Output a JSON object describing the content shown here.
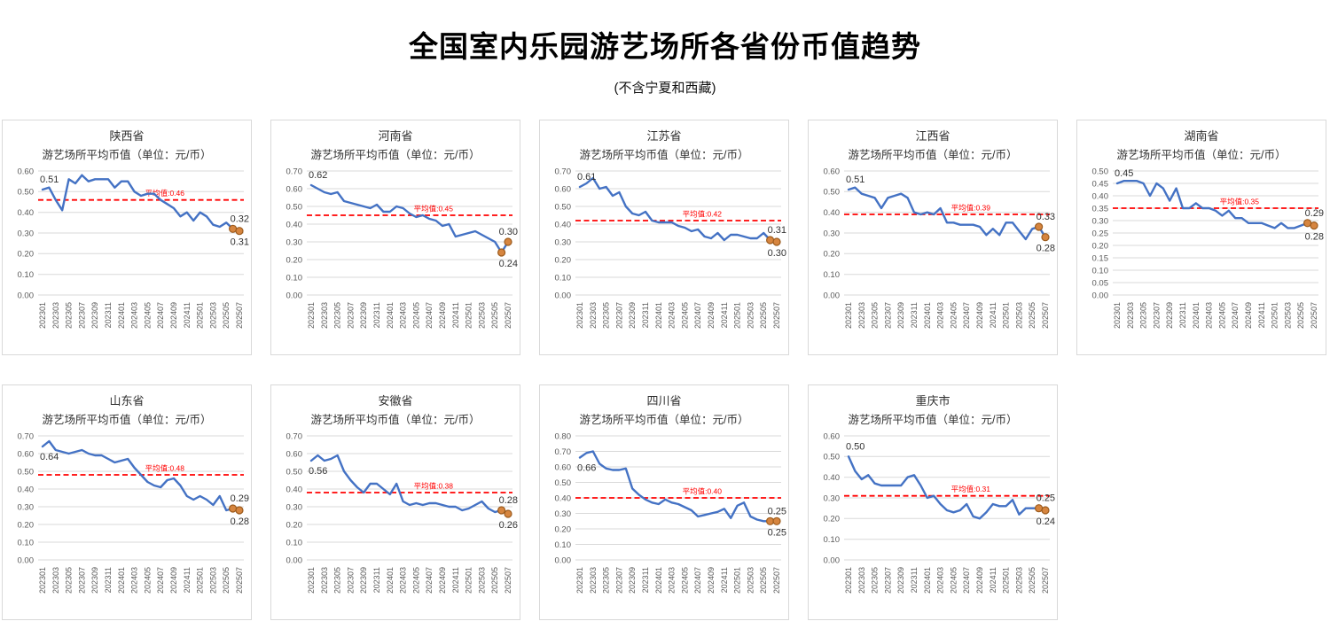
{
  "header": {
    "title": "全国室内乐园游艺场所各省份币值趋势",
    "subtitle": "(不含宁夏和西藏)"
  },
  "colors": {
    "line": "#4472C4",
    "average_line": "#FF0000",
    "marker_fill": "#D6853F",
    "marker_border": "#9C5B1D",
    "grid": "#D9D9D9",
    "axis_text": "#595959",
    "label_text": "#333333"
  },
  "chart_data": [
    {
      "type": "line",
      "title": "陕西省",
      "subtitle": "游艺场所平均币值（单位：元/币）",
      "categories": [
        "202301",
        "202302",
        "202303",
        "202304",
        "202305",
        "202306",
        "202307",
        "202308",
        "202309",
        "202310",
        "202311",
        "202312",
        "202401",
        "202402",
        "202403",
        "202404",
        "202405",
        "202406",
        "202407",
        "202408",
        "202409",
        "202410",
        "202411",
        "202412",
        "202501",
        "202502",
        "202503",
        "202504",
        "202505",
        "202506",
        "202507"
      ],
      "values": [
        0.51,
        0.52,
        0.46,
        0.41,
        0.56,
        0.54,
        0.58,
        0.55,
        0.56,
        0.56,
        0.56,
        0.52,
        0.55,
        0.55,
        0.5,
        0.48,
        0.49,
        0.49,
        0.46,
        0.44,
        0.42,
        0.38,
        0.4,
        0.36,
        0.4,
        0.38,
        0.34,
        0.33,
        0.35,
        0.32,
        0.31
      ],
      "ylim": [
        0,
        0.6
      ],
      "y_ticks": [
        "0.00",
        "0.10",
        "0.20",
        "0.30",
        "0.40",
        "0.50",
        "0.60"
      ],
      "average": 0.46,
      "average_label": "平均值:0.46",
      "first_label": "0.51",
      "first_label_pos": "above",
      "end_labels": [
        {
          "text": "0.32",
          "pos": "above"
        },
        {
          "text": "0.31",
          "pos": "below"
        }
      ]
    },
    {
      "type": "line",
      "title": "河南省",
      "subtitle": "游艺场所平均币值（单位：元/币）",
      "categories": [
        "202301",
        "202302",
        "202303",
        "202304",
        "202305",
        "202306",
        "202307",
        "202308",
        "202309",
        "202310",
        "202311",
        "202312",
        "202401",
        "202402",
        "202403",
        "202404",
        "202405",
        "202406",
        "202407",
        "202408",
        "202409",
        "202410",
        "202411",
        "202412",
        "202501",
        "202502",
        "202503",
        "202504",
        "202505",
        "202506",
        "202507"
      ],
      "values": [
        0.62,
        0.6,
        0.58,
        0.57,
        0.58,
        0.53,
        0.52,
        0.51,
        0.5,
        0.49,
        0.51,
        0.47,
        0.47,
        0.5,
        0.49,
        0.46,
        0.44,
        0.45,
        0.43,
        0.42,
        0.39,
        0.4,
        0.33,
        0.34,
        0.35,
        0.36,
        0.34,
        0.32,
        0.3,
        0.24,
        0.3
      ],
      "ylim": [
        0,
        0.7
      ],
      "y_ticks": [
        "0.00",
        "0.10",
        "0.20",
        "0.30",
        "0.40",
        "0.50",
        "0.60",
        "0.70"
      ],
      "average": 0.45,
      "average_label": "平均值:0.45",
      "first_label": "0.62",
      "first_label_pos": "above",
      "end_labels": [
        {
          "text": "0.24",
          "pos": "below"
        },
        {
          "text": "0.30",
          "pos": "above"
        }
      ]
    },
    {
      "type": "line",
      "title": "江苏省",
      "subtitle": "游艺场所平均币值（单位：元/币）",
      "categories": [
        "202301",
        "202302",
        "202303",
        "202304",
        "202305",
        "202306",
        "202307",
        "202308",
        "202309",
        "202310",
        "202311",
        "202312",
        "202401",
        "202402",
        "202403",
        "202404",
        "202405",
        "202406",
        "202407",
        "202408",
        "202409",
        "202410",
        "202411",
        "202412",
        "202501",
        "202502",
        "202503",
        "202504",
        "202505",
        "202506",
        "202507"
      ],
      "values": [
        0.61,
        0.63,
        0.66,
        0.6,
        0.61,
        0.56,
        0.58,
        0.5,
        0.46,
        0.45,
        0.47,
        0.42,
        0.41,
        0.41,
        0.41,
        0.39,
        0.38,
        0.36,
        0.37,
        0.33,
        0.32,
        0.35,
        0.31,
        0.34,
        0.34,
        0.33,
        0.32,
        0.32,
        0.35,
        0.31,
        0.3
      ],
      "ylim": [
        0,
        0.7
      ],
      "y_ticks": [
        "0.00",
        "0.10",
        "0.20",
        "0.30",
        "0.40",
        "0.50",
        "0.60",
        "0.70"
      ],
      "average": 0.42,
      "average_label": "平均值:0.42",
      "first_label": "0.61",
      "first_label_pos": "above",
      "end_labels": [
        {
          "text": "0.31",
          "pos": "above"
        },
        {
          "text": "0.30",
          "pos": "below"
        }
      ]
    },
    {
      "type": "line",
      "title": "江西省",
      "subtitle": "游艺场所平均币值（单位：元/币）",
      "categories": [
        "202301",
        "202302",
        "202303",
        "202304",
        "202305",
        "202306",
        "202307",
        "202308",
        "202309",
        "202310",
        "202311",
        "202312",
        "202401",
        "202402",
        "202403",
        "202404",
        "202405",
        "202406",
        "202407",
        "202408",
        "202409",
        "202410",
        "202411",
        "202412",
        "202501",
        "202502",
        "202503",
        "202504",
        "202505",
        "202506",
        "202507"
      ],
      "values": [
        0.51,
        0.52,
        0.49,
        0.48,
        0.47,
        0.42,
        0.47,
        0.48,
        0.49,
        0.47,
        0.4,
        0.39,
        0.4,
        0.39,
        0.42,
        0.35,
        0.35,
        0.34,
        0.34,
        0.34,
        0.33,
        0.29,
        0.32,
        0.29,
        0.35,
        0.35,
        0.31,
        0.27,
        0.32,
        0.33,
        0.28
      ],
      "ylim": [
        0,
        0.6
      ],
      "y_ticks": [
        "0.00",
        "0.10",
        "0.20",
        "0.30",
        "0.40",
        "0.50",
        "0.60"
      ],
      "average": 0.39,
      "average_label": "平均值:0.39",
      "first_label": "0.51",
      "first_label_pos": "above",
      "end_labels": [
        {
          "text": "0.33",
          "pos": "above"
        },
        {
          "text": "0.28",
          "pos": "below"
        }
      ]
    },
    {
      "type": "line",
      "title": "湖南省",
      "subtitle": "游艺场所平均币值（单位：元/币）",
      "categories": [
        "202301",
        "202302",
        "202303",
        "202304",
        "202305",
        "202306",
        "202307",
        "202308",
        "202309",
        "202310",
        "202311",
        "202312",
        "202401",
        "202402",
        "202403",
        "202404",
        "202405",
        "202406",
        "202407",
        "202408",
        "202409",
        "202410",
        "202411",
        "202412",
        "202501",
        "202502",
        "202503",
        "202504",
        "202505",
        "202506",
        "202507"
      ],
      "values": [
        0.45,
        0.46,
        0.46,
        0.46,
        0.45,
        0.4,
        0.45,
        0.43,
        0.38,
        0.43,
        0.35,
        0.35,
        0.37,
        0.35,
        0.35,
        0.34,
        0.32,
        0.34,
        0.31,
        0.31,
        0.29,
        0.29,
        0.29,
        0.28,
        0.27,
        0.29,
        0.27,
        0.27,
        0.28,
        0.29,
        0.28
      ],
      "ylim": [
        0,
        0.5
      ],
      "y_ticks": [
        "0.00",
        "0.05",
        "0.10",
        "0.15",
        "0.20",
        "0.25",
        "0.30",
        "0.35",
        "0.40",
        "0.45",
        "0.50"
      ],
      "average": 0.35,
      "average_label": "平均值:0.35",
      "first_label": "0.45",
      "first_label_pos": "above",
      "end_labels": [
        {
          "text": "0.29",
          "pos": "above"
        },
        {
          "text": "0.28",
          "pos": "below"
        }
      ]
    },
    {
      "type": "line",
      "title": "山东省",
      "subtitle": "游艺场所平均币值（单位：元/币）",
      "categories": [
        "202301",
        "202302",
        "202303",
        "202304",
        "202305",
        "202306",
        "202307",
        "202308",
        "202309",
        "202310",
        "202311",
        "202312",
        "202401",
        "202402",
        "202403",
        "202404",
        "202405",
        "202406",
        "202407",
        "202408",
        "202409",
        "202410",
        "202411",
        "202412",
        "202501",
        "202502",
        "202503",
        "202504",
        "202505",
        "202506",
        "202507"
      ],
      "values": [
        0.64,
        0.67,
        0.62,
        0.61,
        0.6,
        0.61,
        0.62,
        0.6,
        0.59,
        0.59,
        0.57,
        0.55,
        0.56,
        0.57,
        0.52,
        0.48,
        0.44,
        0.42,
        0.41,
        0.45,
        0.46,
        0.42,
        0.36,
        0.34,
        0.36,
        0.34,
        0.31,
        0.36,
        0.28,
        0.29,
        0.28
      ],
      "ylim": [
        0,
        0.7
      ],
      "y_ticks": [
        "0.00",
        "0.10",
        "0.20",
        "0.30",
        "0.40",
        "0.50",
        "0.60",
        "0.70"
      ],
      "average": 0.48,
      "average_label": "平均值:0.48",
      "first_label": "0.64",
      "first_label_pos": "below",
      "end_labels": [
        {
          "text": "0.29",
          "pos": "above"
        },
        {
          "text": "0.28",
          "pos": "below"
        }
      ]
    },
    {
      "type": "line",
      "title": "安徽省",
      "subtitle": "游艺场所平均币值（单位：元/币）",
      "categories": [
        "202301",
        "202302",
        "202303",
        "202304",
        "202305",
        "202306",
        "202307",
        "202308",
        "202309",
        "202310",
        "202311",
        "202312",
        "202401",
        "202402",
        "202403",
        "202404",
        "202405",
        "202406",
        "202407",
        "202408",
        "202409",
        "202410",
        "202411",
        "202412",
        "202501",
        "202502",
        "202503",
        "202504",
        "202505",
        "202506",
        "202507"
      ],
      "values": [
        0.56,
        0.59,
        0.56,
        0.57,
        0.59,
        0.5,
        0.45,
        0.41,
        0.38,
        0.43,
        0.43,
        0.4,
        0.37,
        0.43,
        0.33,
        0.31,
        0.32,
        0.31,
        0.32,
        0.32,
        0.31,
        0.3,
        0.3,
        0.28,
        0.29,
        0.31,
        0.33,
        0.29,
        0.27,
        0.28,
        0.26
      ],
      "ylim": [
        0,
        0.7
      ],
      "y_ticks": [
        "0.00",
        "0.10",
        "0.20",
        "0.30",
        "0.40",
        "0.50",
        "0.60",
        "0.70"
      ],
      "average": 0.38,
      "average_label": "平均值:0.38",
      "first_label": "0.56",
      "first_label_pos": "below",
      "end_labels": [
        {
          "text": "0.28",
          "pos": "above"
        },
        {
          "text": "0.26",
          "pos": "below"
        }
      ]
    },
    {
      "type": "line",
      "title": "四川省",
      "subtitle": "游艺场所平均币值（单位：元/币）",
      "categories": [
        "202301",
        "202302",
        "202303",
        "202304",
        "202305",
        "202306",
        "202307",
        "202308",
        "202309",
        "202310",
        "202311",
        "202312",
        "202401",
        "202402",
        "202403",
        "202404",
        "202405",
        "202406",
        "202407",
        "202408",
        "202409",
        "202410",
        "202411",
        "202412",
        "202501",
        "202502",
        "202503",
        "202504",
        "202505",
        "202506",
        "202507"
      ],
      "values": [
        0.66,
        0.69,
        0.7,
        0.62,
        0.59,
        0.58,
        0.58,
        0.59,
        0.46,
        0.42,
        0.39,
        0.37,
        0.36,
        0.39,
        0.37,
        0.36,
        0.34,
        0.32,
        0.28,
        0.29,
        0.3,
        0.31,
        0.33,
        0.27,
        0.35,
        0.37,
        0.28,
        0.26,
        0.25,
        0.25,
        0.25
      ],
      "ylim": [
        0,
        0.8
      ],
      "y_ticks": [
        "0.00",
        "0.10",
        "0.20",
        "0.30",
        "0.40",
        "0.50",
        "0.60",
        "0.70",
        "0.80"
      ],
      "average": 0.4,
      "average_label": "平均值:0.40",
      "first_label": "0.66",
      "first_label_pos": "below",
      "end_labels": [
        {
          "text": "0.25",
          "pos": "above"
        },
        {
          "text": "0.25",
          "pos": "below"
        }
      ]
    },
    {
      "type": "line",
      "title": "重庆市",
      "subtitle": "游艺场所平均币值（单位：元/币）",
      "categories": [
        "202301",
        "202302",
        "202303",
        "202304",
        "202305",
        "202306",
        "202307",
        "202308",
        "202309",
        "202310",
        "202311",
        "202312",
        "202401",
        "202402",
        "202403",
        "202404",
        "202405",
        "202406",
        "202407",
        "202408",
        "202409",
        "202410",
        "202411",
        "202412",
        "202501",
        "202502",
        "202503",
        "202504",
        "202505",
        "202506",
        "202507"
      ],
      "values": [
        0.5,
        0.43,
        0.39,
        0.41,
        0.37,
        0.36,
        0.36,
        0.36,
        0.36,
        0.4,
        0.41,
        0.36,
        0.3,
        0.31,
        0.27,
        0.24,
        0.23,
        0.24,
        0.27,
        0.21,
        0.2,
        0.23,
        0.27,
        0.26,
        0.26,
        0.29,
        0.22,
        0.25,
        0.25,
        0.25,
        0.24
      ],
      "ylim": [
        0,
        0.6
      ],
      "y_ticks": [
        "0.00",
        "0.10",
        "0.20",
        "0.30",
        "0.40",
        "0.50",
        "0.60"
      ],
      "average": 0.31,
      "average_label": "平均值:0.31",
      "first_label": "0.50",
      "first_label_pos": "above",
      "end_labels": [
        {
          "text": "0.25",
          "pos": "above"
        },
        {
          "text": "0.24",
          "pos": "below"
        }
      ]
    }
  ]
}
